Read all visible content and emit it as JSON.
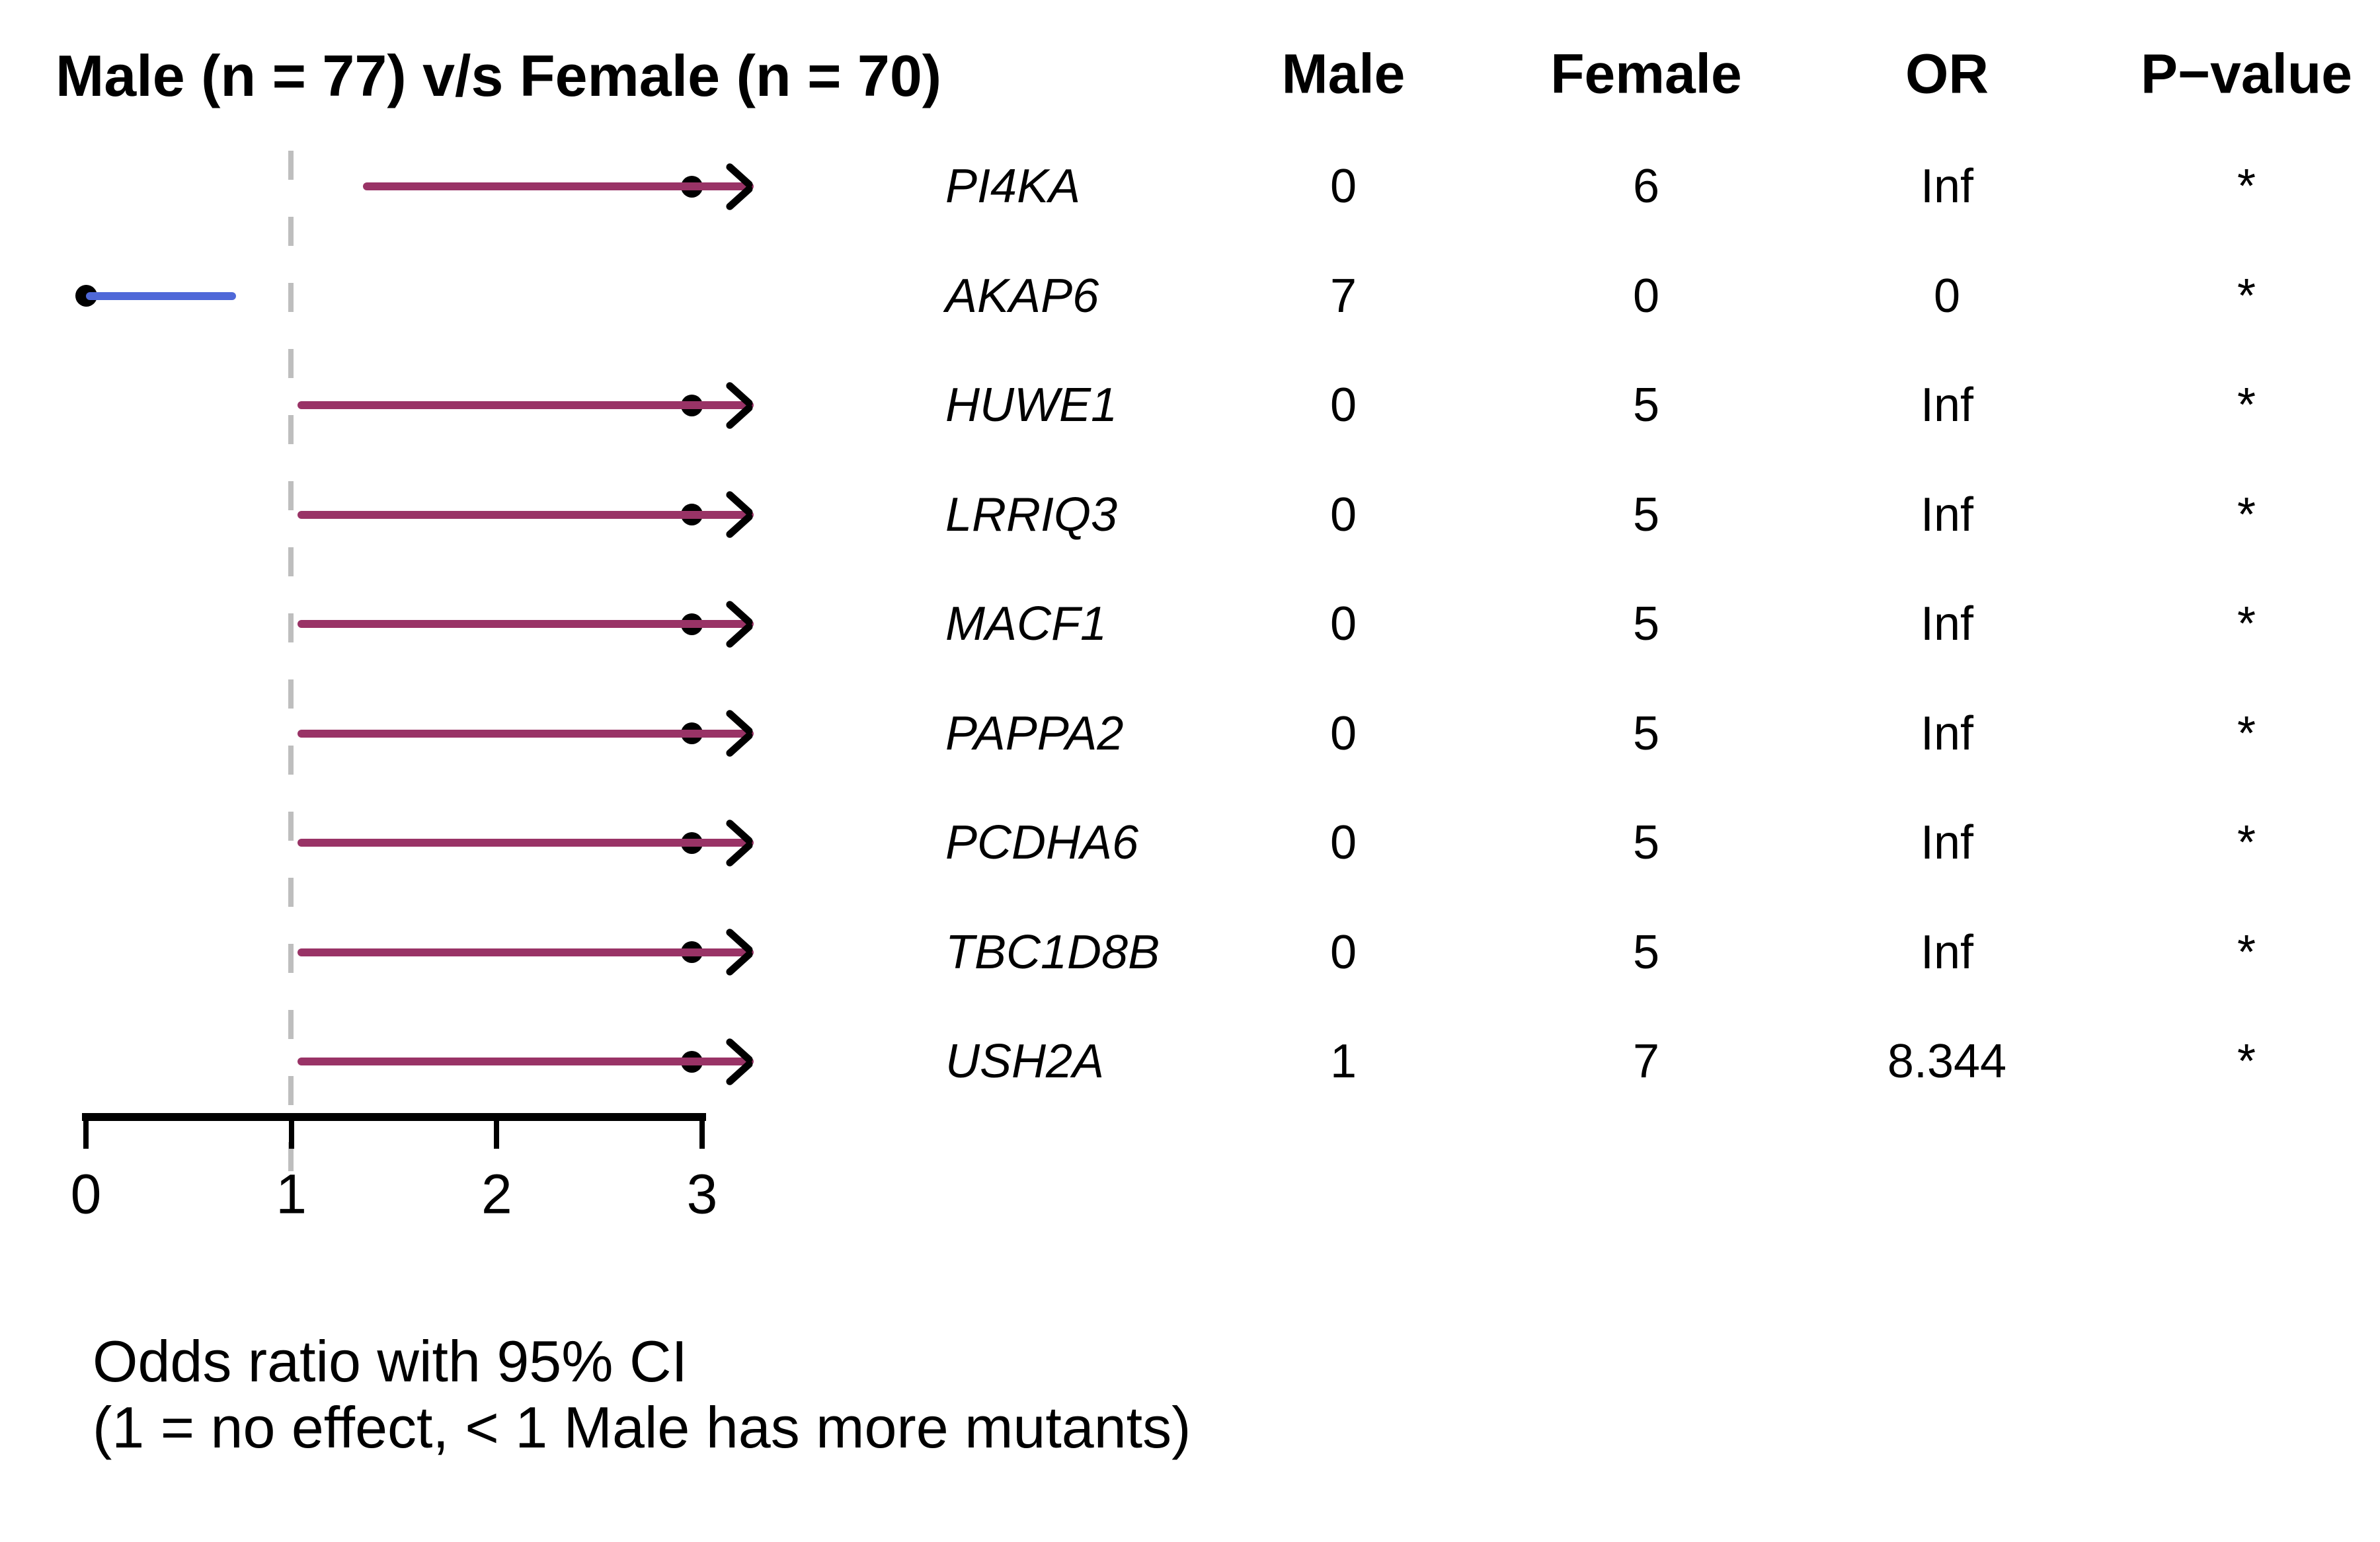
{
  "title": "Male (n = 77) v/s Female (n = 70)",
  "table": {
    "headers": {
      "male": "Male",
      "female": "Female",
      "or": "OR",
      "pvalue": "P−value"
    }
  },
  "caption": {
    "line1": "Odds ratio with 95% CI",
    "line2": "(1 = no effect, < 1 Male has more mutants)"
  },
  "chart_data": {
    "type": "forest",
    "title": "Male (n = 77) v/s Female (n = 70)",
    "xlim": [
      0,
      3.3
    ],
    "x_ticks": [
      0,
      1,
      2,
      3
    ],
    "reference_line_x": 1,
    "grid": false,
    "colors": {
      "ci_female_higher": "#993366",
      "ci_male_higher": "#4F68D8",
      "reference": "#BEBEBE",
      "point": "#000000"
    },
    "rows": [
      {
        "gene": "PI4KA",
        "male": "0",
        "female": "6",
        "or": "Inf",
        "pvalue": "*",
        "ci_low": 1.35,
        "ci_high": 3.25,
        "point_x": 2.95,
        "arrow_right": true,
        "color_key": "ci_female_higher"
      },
      {
        "gene": "AKAP6",
        "male": "7",
        "female": "0",
        "or": "0",
        "pvalue": "*",
        "ci_low": 0.0,
        "ci_high": 0.73,
        "point_x": 0.0,
        "arrow_right": false,
        "color_key": "ci_male_higher"
      },
      {
        "gene": "HUWE1",
        "male": "0",
        "female": "5",
        "or": "Inf",
        "pvalue": "*",
        "ci_low": 1.03,
        "ci_high": 3.25,
        "point_x": 2.95,
        "arrow_right": true,
        "color_key": "ci_female_higher"
      },
      {
        "gene": "LRRIQ3",
        "male": "0",
        "female": "5",
        "or": "Inf",
        "pvalue": "*",
        "ci_low": 1.03,
        "ci_high": 3.25,
        "point_x": 2.95,
        "arrow_right": true,
        "color_key": "ci_female_higher"
      },
      {
        "gene": "MACF1",
        "male": "0",
        "female": "5",
        "or": "Inf",
        "pvalue": "*",
        "ci_low": 1.03,
        "ci_high": 3.25,
        "point_x": 2.95,
        "arrow_right": true,
        "color_key": "ci_female_higher"
      },
      {
        "gene": "PAPPA2",
        "male": "0",
        "female": "5",
        "or": "Inf",
        "pvalue": "*",
        "ci_low": 1.03,
        "ci_high": 3.25,
        "point_x": 2.95,
        "arrow_right": true,
        "color_key": "ci_female_higher"
      },
      {
        "gene": "PCDHA6",
        "male": "0",
        "female": "5",
        "or": "Inf",
        "pvalue": "*",
        "ci_low": 1.03,
        "ci_high": 3.25,
        "point_x": 2.95,
        "arrow_right": true,
        "color_key": "ci_female_higher"
      },
      {
        "gene": "TBC1D8B",
        "male": "0",
        "female": "5",
        "or": "Inf",
        "pvalue": "*",
        "ci_low": 1.03,
        "ci_high": 3.25,
        "point_x": 2.95,
        "arrow_right": true,
        "color_key": "ci_female_higher"
      },
      {
        "gene": "USH2A",
        "male": "1",
        "female": "7",
        "or": "8.344",
        "pvalue": "*",
        "ci_low": 1.03,
        "ci_high": 3.25,
        "point_x": 2.95,
        "arrow_right": true,
        "color_key": "ci_female_higher"
      }
    ]
  }
}
